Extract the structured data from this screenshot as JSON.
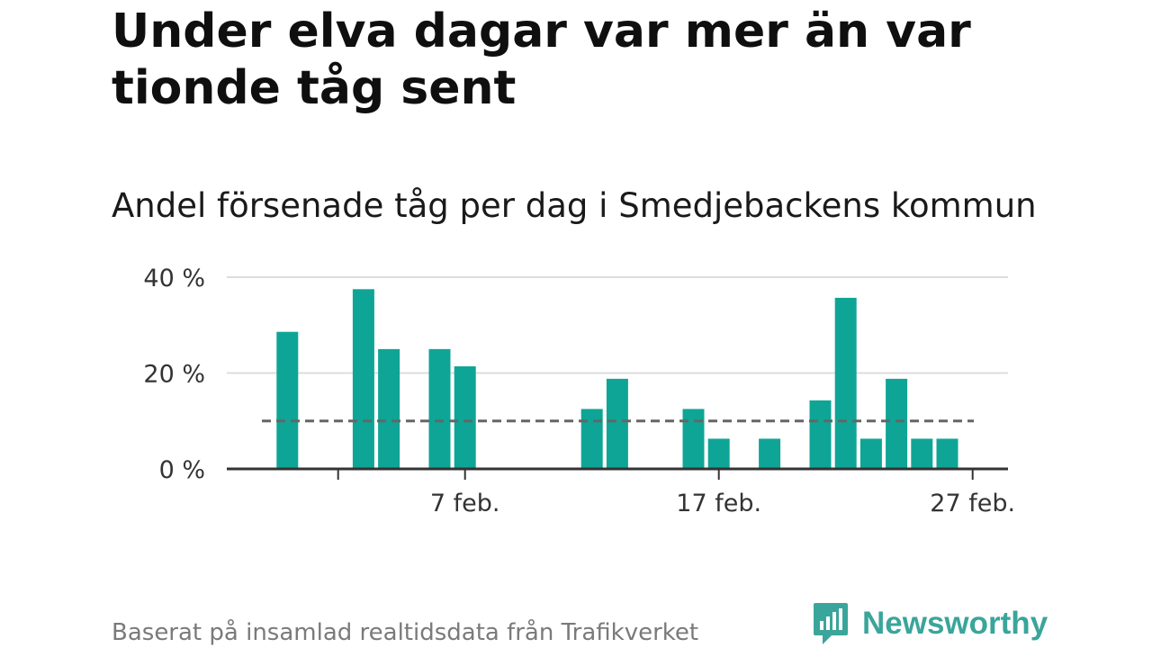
{
  "headline": "Under elva dagar var mer än var tionde tåg sent",
  "subtitle": "Andel försenade tåg per dag i Smedjebackens kommun",
  "source": "Baserat på insamlad realtidsdata från Trafikverket",
  "brand": {
    "name": "Newsworthy",
    "logo_icon": "newsworthy-bar-chart-icon",
    "color": "#3aa59a"
  },
  "colors": {
    "bar": "#0fa596",
    "grid": "#dddddd",
    "axis": "#333333",
    "reference": "#666666",
    "tick_text": "#333333"
  },
  "chart_data": {
    "type": "bar",
    "title": "",
    "xlabel": "",
    "ylabel": "",
    "unit": "%",
    "ylim": [
      0,
      40
    ],
    "yticks": [
      {
        "value": 0,
        "label": "0 %"
      },
      {
        "value": 20,
        "label": "20 %"
      },
      {
        "value": 40,
        "label": "40 %"
      }
    ],
    "xticks": [
      {
        "date": "2 feb.",
        "label": ""
      },
      {
        "date": "7 feb.",
        "label": "7 feb."
      },
      {
        "date": "17 feb.",
        "label": "17 feb."
      },
      {
        "date": "27 feb.",
        "label": "27 feb."
      }
    ],
    "reference_line": {
      "value": 10,
      "style": "dashed"
    },
    "grid": true,
    "categories": [
      "30 jan.",
      "31 jan.",
      "1 feb.",
      "2 feb.",
      "3 feb.",
      "4 feb.",
      "5 feb.",
      "6 feb.",
      "7 feb.",
      "8 feb.",
      "9 feb.",
      "10 feb.",
      "11 feb.",
      "12 feb.",
      "13 feb.",
      "14 feb.",
      "15 feb.",
      "16 feb.",
      "17 feb.",
      "18 feb.",
      "19 feb.",
      "20 feb.",
      "21 feb.",
      "22 feb.",
      "23 feb.",
      "24 feb.",
      "25 feb.",
      "26 feb.",
      "27 feb.",
      "28 feb."
    ],
    "values": [
      null,
      28.6,
      null,
      null,
      37.5,
      25.0,
      null,
      25.0,
      21.4,
      null,
      null,
      null,
      null,
      12.5,
      18.8,
      null,
      null,
      12.5,
      6.3,
      null,
      6.3,
      null,
      14.3,
      35.7,
      6.3,
      18.8,
      6.3,
      6.3,
      null,
      null
    ]
  }
}
